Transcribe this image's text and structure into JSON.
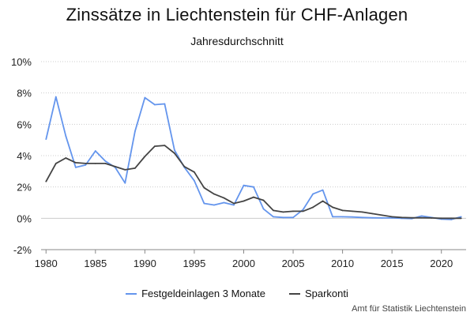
{
  "chart_data": {
    "type": "line",
    "title": "Zinssätze in Liechtenstein für CHF-Anlagen",
    "subtitle": "Jahresdurchschnitt",
    "x": [
      1980,
      1981,
      1982,
      1983,
      1984,
      1985,
      1986,
      1987,
      1988,
      1989,
      1990,
      1991,
      1992,
      1993,
      1994,
      1995,
      1996,
      1997,
      1998,
      1999,
      2000,
      2001,
      2002,
      2003,
      2004,
      2005,
      2006,
      2007,
      2008,
      2009,
      2010,
      2011,
      2012,
      2013,
      2014,
      2015,
      2016,
      2017,
      2018,
      2019,
      2020,
      2021,
      2022
    ],
    "series": [
      {
        "name": "Festgeldeinlagen 3 Monate",
        "color": "#6495ED",
        "values": [
          5.05,
          7.75,
          5.25,
          3.25,
          3.4,
          4.3,
          3.65,
          3.25,
          2.25,
          5.55,
          7.7,
          7.25,
          7.3,
          4.35,
          3.25,
          2.4,
          0.95,
          0.85,
          1.0,
          0.85,
          2.1,
          2.0,
          0.6,
          0.1,
          0.05,
          0.05,
          0.55,
          1.55,
          1.8,
          0.1,
          0.1,
          0.08,
          0.05,
          0.03,
          0.02,
          0.02,
          0.0,
          -0.02,
          0.15,
          0.05,
          -0.05,
          -0.08,
          0.1
        ]
      },
      {
        "name": "Sparkonti",
        "color": "#444444",
        "values": [
          2.35,
          3.5,
          3.85,
          3.55,
          3.5,
          3.5,
          3.5,
          3.3,
          3.1,
          3.2,
          3.95,
          4.6,
          4.65,
          4.15,
          3.3,
          2.95,
          1.95,
          1.55,
          1.3,
          0.95,
          1.1,
          1.35,
          1.15,
          0.5,
          0.4,
          0.45,
          0.45,
          0.7,
          1.1,
          0.7,
          0.5,
          0.45,
          0.4,
          0.3,
          0.2,
          0.1,
          0.05,
          0.03,
          0.03,
          0.02,
          0.0,
          0.0,
          0.0
        ]
      }
    ],
    "xticks": [
      1980,
      1985,
      1990,
      1995,
      2000,
      2005,
      2010,
      2015,
      2020
    ],
    "yticks": [
      -2,
      0,
      2,
      4,
      6,
      8,
      10
    ],
    "ytick_labels": [
      "-2%",
      "0%",
      "2%",
      "4%",
      "6%",
      "8%",
      "10%"
    ],
    "xlim": [
      1979.5,
      2022.5
    ],
    "ylim": [
      -2,
      10
    ],
    "grid": "horizontal",
    "legend_position": "bottom"
  },
  "source": "Amt für Statistik Liechtenstein"
}
